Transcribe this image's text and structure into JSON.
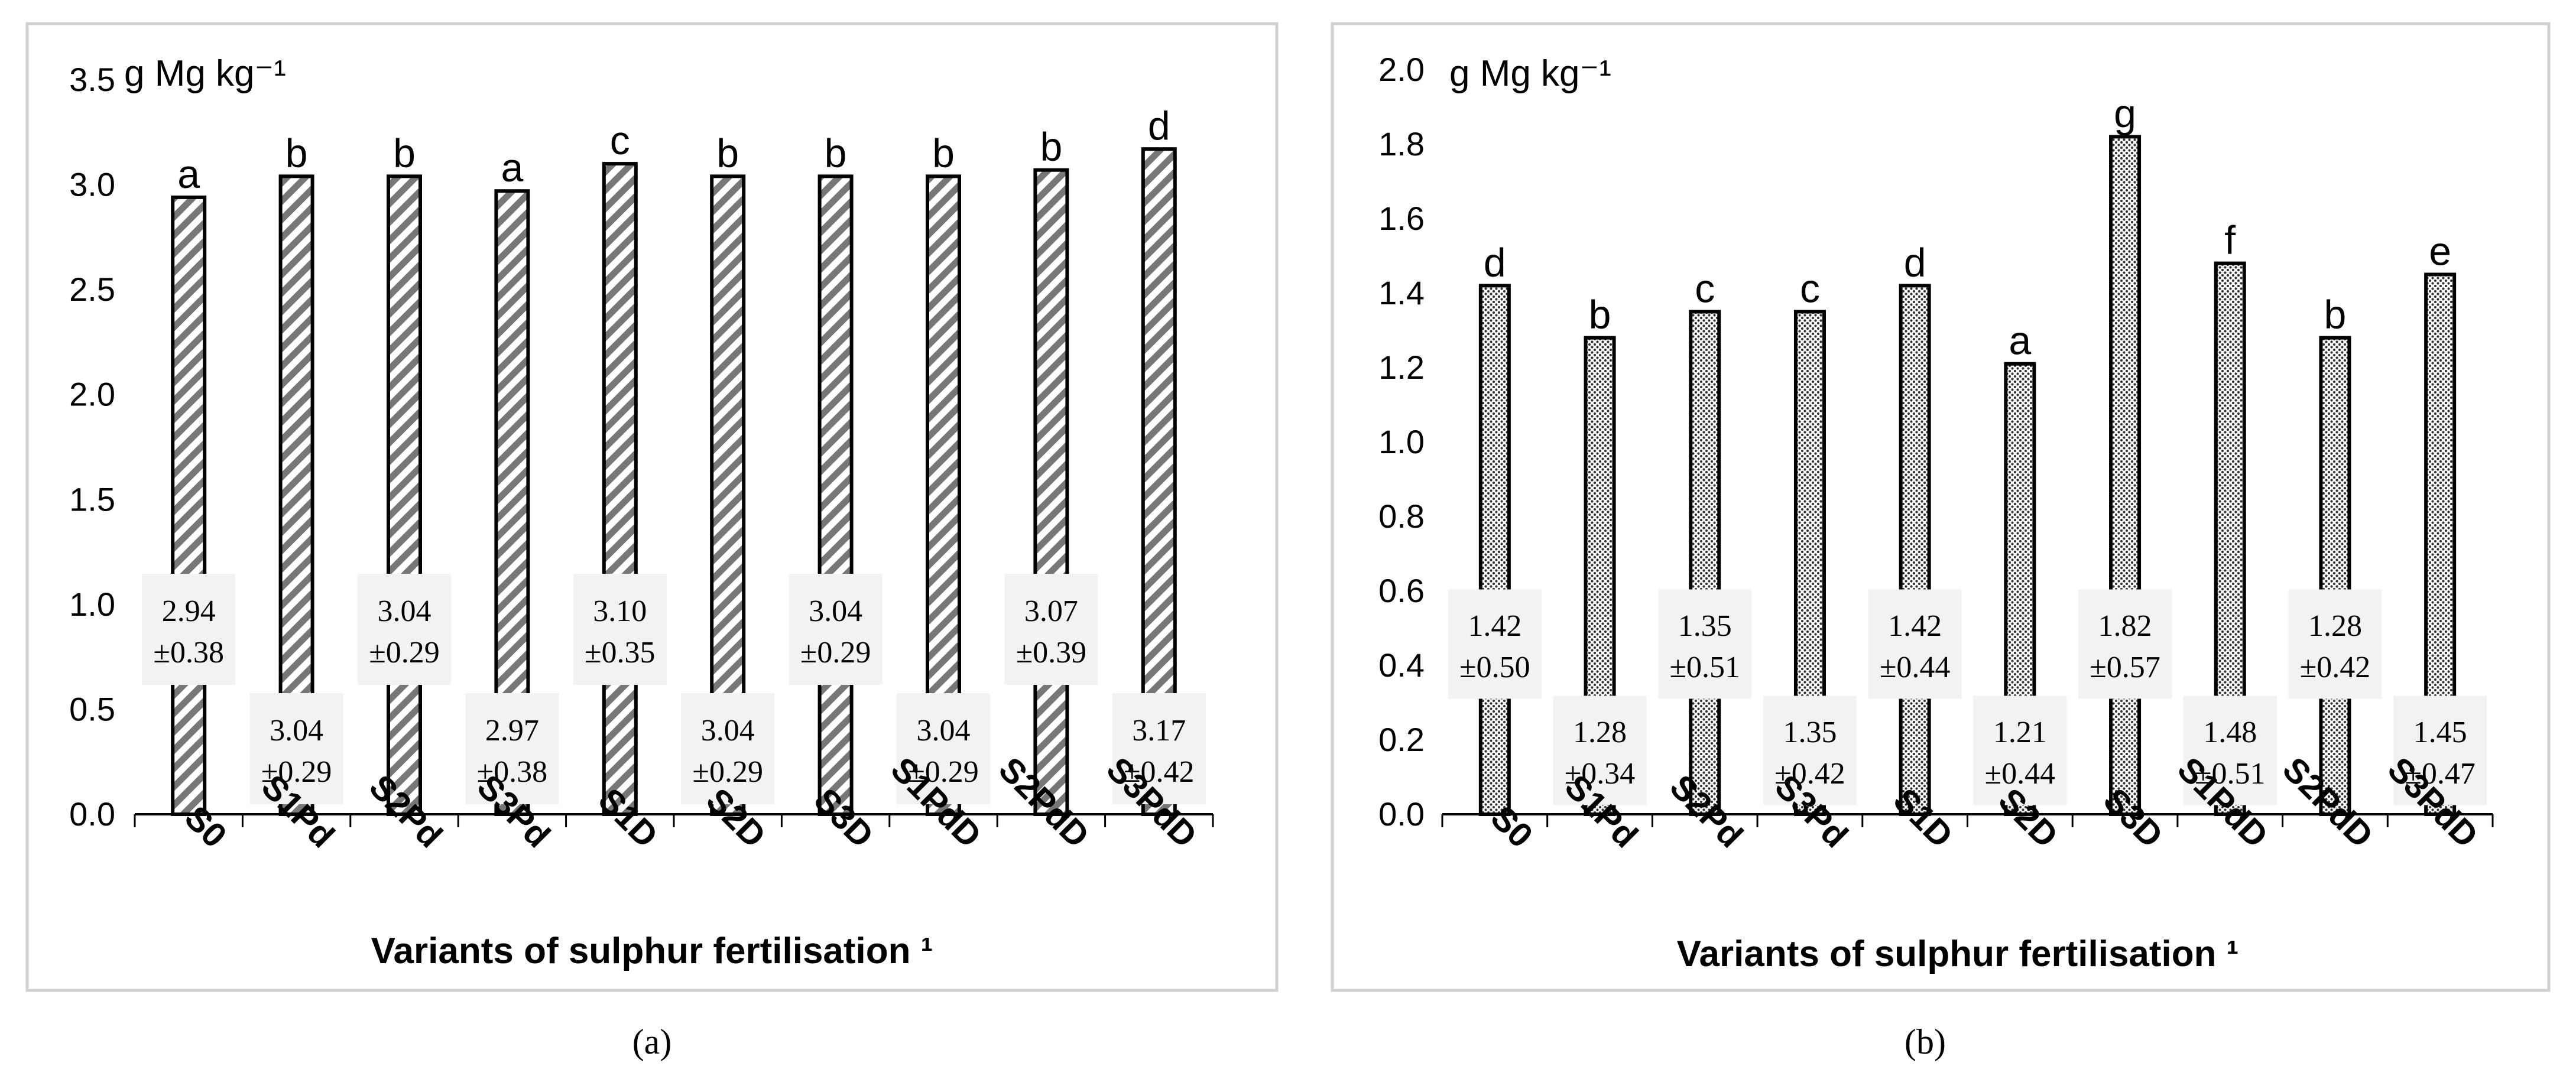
{
  "chart_data": [
    {
      "type": "bar",
      "panel_label": "(a)",
      "unit_label": "g Mg kg⁻¹",
      "xlabel": "Variants of sulphur fertilisation ¹",
      "ylabel": "",
      "ylim": [
        0,
        3.5
      ],
      "yticks": [
        "0.0",
        "0.5",
        "1.0",
        "1.5",
        "2.0",
        "2.5",
        "3.0",
        "3.5"
      ],
      "pattern": "diagonal-stripes",
      "categories": [
        "S0",
        "S1Pd",
        "S2Pd",
        "S3Pd",
        "S1D",
        "S2D",
        "S3D",
        "S1PdD",
        "S2PdD",
        "S3PdD"
      ],
      "values": [
        2.94,
        3.04,
        3.04,
        2.97,
        3.1,
        3.04,
        3.04,
        3.04,
        3.07,
        3.17
      ],
      "value_labels": [
        "2.94",
        "3.04",
        "3.04",
        "2.97",
        "3.10",
        "3.04",
        "3.04",
        "3.04",
        "3.07",
        "3.17"
      ],
      "sd_labels": [
        "±0.38",
        "±0.29",
        "±0.29",
        "±0.38",
        "±0.35",
        "±0.29",
        "±0.29",
        "±0.29",
        "±0.39",
        "±0.42"
      ],
      "letters": [
        "a",
        "b",
        "b",
        "a",
        "c",
        "b",
        "b",
        "b",
        "b",
        "d"
      ]
    },
    {
      "type": "bar",
      "panel_label": "(b)",
      "unit_label": "g Mg kg⁻¹",
      "xlabel": "Variants of sulphur fertilisation ¹",
      "ylabel": "",
      "ylim": [
        0,
        2.0
      ],
      "yticks": [
        "0.0",
        "0.2",
        "0.4",
        "0.6",
        "0.8",
        "1.0",
        "1.2",
        "1.4",
        "1.6",
        "1.8",
        "2.0"
      ],
      "pattern": "dots",
      "categories": [
        "S0",
        "S1Pd",
        "S2Pd",
        "S3Pd",
        "S1D",
        "S2D",
        "S3D",
        "S1PdD",
        "S2PdD",
        "S3PdD"
      ],
      "values": [
        1.42,
        1.28,
        1.35,
        1.35,
        1.42,
        1.21,
        1.82,
        1.48,
        1.28,
        1.45
      ],
      "value_labels": [
        "1.42",
        "1.28",
        "1.35",
        "1.35",
        "1.42",
        "1.21",
        "1.82",
        "1.48",
        "1.28",
        "1.45"
      ],
      "sd_labels": [
        "±0.50",
        "±0.34",
        "±0.51",
        "±0.42",
        "±0.44",
        "±0.44",
        "±0.57",
        "±0.51",
        "±0.42",
        "±0.47"
      ],
      "letters": [
        "d",
        "b",
        "c",
        "c",
        "d",
        "a",
        "g",
        "f",
        "b",
        "e"
      ]
    }
  ]
}
